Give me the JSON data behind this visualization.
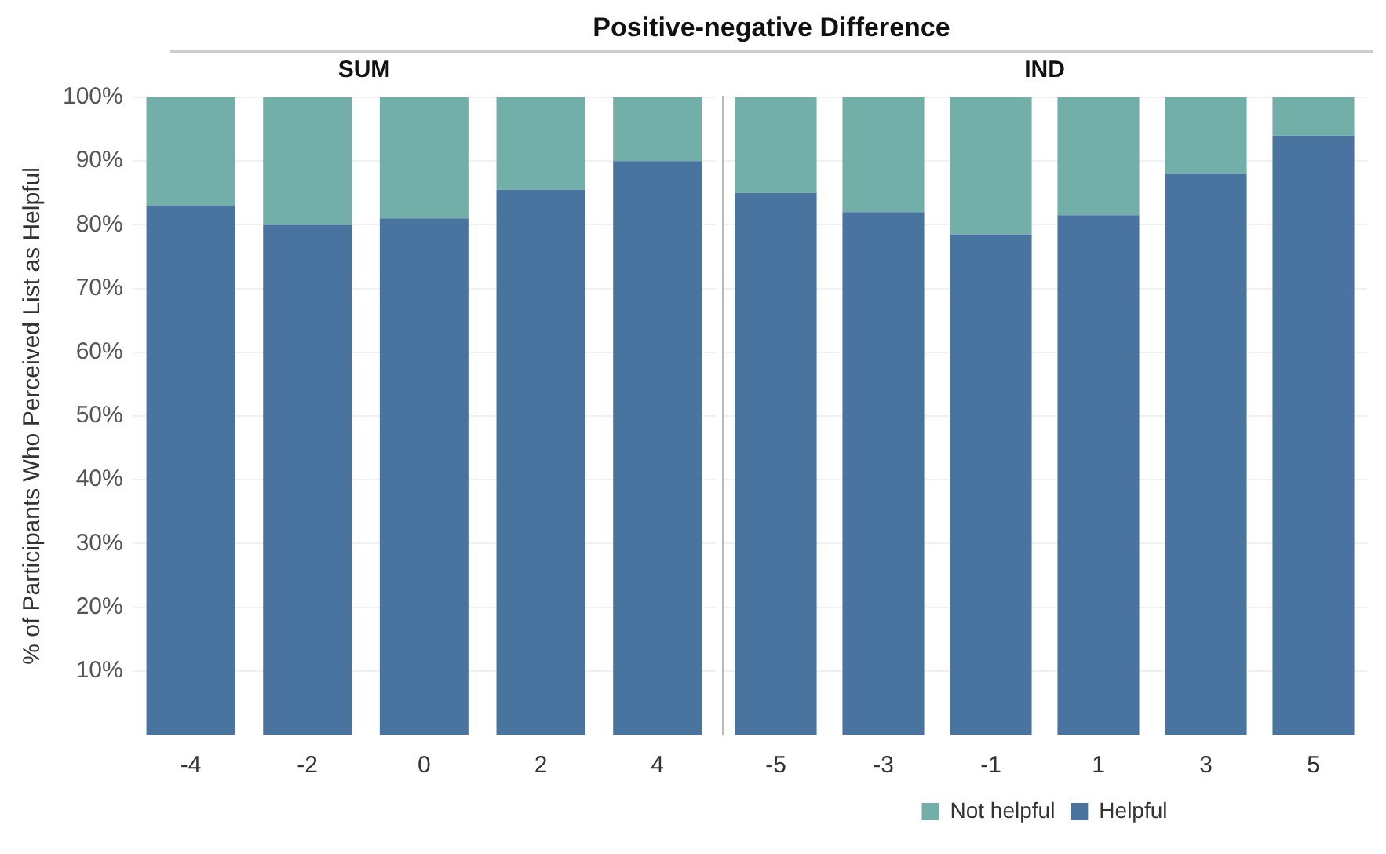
{
  "chart_data": [
    {
      "type": "bar",
      "title": "Positive-negative Difference",
      "subtitle": "SUM",
      "ylabel": "% of Participants Who Perceived List as Helpful",
      "categories": [
        "-4",
        "-2",
        "0",
        "2",
        "4"
      ],
      "stacked": true,
      "series": [
        {
          "color": "#4a74a0",
          "values": [
            83,
            80,
            81,
            85.5,
            90
          ]
        },
        {
          "color": "#72afa9",
          "values": [
            17,
            20,
            19,
            14.5,
            10
          ]
        }
      ],
      "ylim": [
        0,
        100
      ],
      "yticks": [
        {
          "value": 10,
          "label": "10%"
        },
        {
          "value": 20,
          "label": "20%"
        },
        {
          "value": 30,
          "label": "30%"
        },
        {
          "value": 40,
          "label": "40%"
        },
        {
          "value": 50,
          "label": "50%"
        },
        {
          "value": 60,
          "label": "60%"
        },
        {
          "value": 70,
          "label": "70%"
        },
        {
          "value": 80,
          "label": "80%"
        },
        {
          "value": 90,
          "label": "90%"
        },
        {
          "value": 100,
          "label": "100%"
        }
      ],
      "grid": "y"
    },
    {
      "type": "bar",
      "subtitle": "IND",
      "categories": [
        "-5",
        "-3",
        "-1",
        "1",
        "3",
        "5"
      ],
      "stacked": true,
      "series": [
        {
          "name": "Helpful",
          "color": "#4a74a0",
          "values": [
            85,
            82,
            78.5,
            81.5,
            88,
            94
          ]
        },
        {
          "name": "Not helpful",
          "color": "#72afa9",
          "values": [
            15,
            18,
            21.5,
            18.5,
            12,
            6
          ]
        }
      ],
      "ylim": [
        0,
        100
      ],
      "yticks": [
        {
          "value": 10,
          "label": null
        },
        {
          "value": 20,
          "label": null
        },
        {
          "value": 30,
          "label": null
        },
        {
          "value": 40,
          "label": null
        },
        {
          "value": 50,
          "label": null
        },
        {
          "value": 60,
          "label": null
        },
        {
          "value": 70,
          "label": null
        },
        {
          "value": 80,
          "label": null
        },
        {
          "value": 90,
          "label": null
        },
        {
          "value": 100,
          "label": null
        }
      ],
      "grid": "y",
      "tick_labels": "x",
      "legend": "bottom"
    }
  ]
}
